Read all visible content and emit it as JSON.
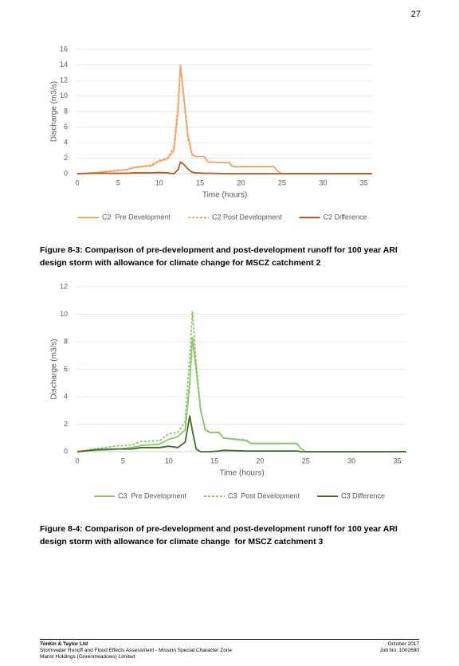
{
  "page_number": "27",
  "chart_data": [
    {
      "type": "line",
      "ylabel": "Discharge (m3/s)",
      "xlabel": "Time (hours)",
      "xlim": [
        0,
        36
      ],
      "ylim": [
        0,
        16
      ],
      "xticks": [
        0,
        5,
        10,
        15,
        20,
        25,
        30,
        35
      ],
      "yticks": [
        0,
        2,
        4,
        6,
        8,
        10,
        12,
        14,
        16
      ],
      "grid": true,
      "x": [
        0,
        2,
        4,
        6,
        7,
        9,
        10,
        11,
        11.8,
        12.3,
        12.6,
        13,
        13.5,
        14,
        14.5,
        15.5,
        16,
        18.5,
        19,
        24,
        24.5,
        25,
        36
      ],
      "series": [
        {
          "name": "C2  Pre Development",
          "color": "#f4a56a",
          "line_style": "solid",
          "values": [
            0,
            0.1,
            0.3,
            0.5,
            0.8,
            1.0,
            1.6,
            1.9,
            3,
            8,
            14,
            10,
            5,
            2.5,
            2.2,
            2.2,
            1.5,
            1.4,
            0.9,
            0.9,
            0.3,
            0,
            0
          ]
        },
        {
          "name": "C2 Post Development",
          "color": "#f4a56a",
          "line_style": "dashed",
          "values": [
            0,
            0.1,
            0.35,
            0.55,
            0.85,
            1.1,
            1.7,
            2.0,
            3.5,
            9,
            13.8,
            9.5,
            4.5,
            2.4,
            2.2,
            2.2,
            1.5,
            1.4,
            0.9,
            0.9,
            0.3,
            0,
            0
          ]
        },
        {
          "name": "C2 Difference",
          "color": "#b5561c",
          "line_style": "solid",
          "values": [
            0,
            0.05,
            0.05,
            0.05,
            0.1,
            0.1,
            0.15,
            0.1,
            0,
            0.5,
            1.5,
            1.2,
            0.6,
            0.2,
            0.1,
            0.05,
            0.05,
            0,
            0,
            0,
            0,
            0,
            0
          ]
        }
      ]
    },
    {
      "type": "line",
      "ylabel": "Discharge (m3/s)",
      "xlabel": "Time (hours)",
      "xlim": [
        0,
        36
      ],
      "ylim": [
        0,
        12
      ],
      "xticks": [
        0,
        5,
        10,
        15,
        20,
        25,
        30,
        35
      ],
      "yticks": [
        0,
        2,
        4,
        6,
        8,
        10,
        12
      ],
      "grid": true,
      "x": [
        0,
        2,
        4,
        6,
        7,
        9,
        10,
        11,
        11.8,
        12.3,
        12.6,
        13,
        13.5,
        14,
        14.5,
        15.5,
        16,
        18.5,
        19,
        24,
        24.5,
        25,
        36
      ],
      "series": [
        {
          "name": "C3  Pre Development",
          "color": "#8cc567",
          "line_style": "solid",
          "values": [
            0,
            0.1,
            0.15,
            0.3,
            0.45,
            0.55,
            0.9,
            1.1,
            1.6,
            5,
            8.3,
            6,
            3,
            1.6,
            1.4,
            1.4,
            1.0,
            0.8,
            0.6,
            0.6,
            0.2,
            0,
            0
          ]
        },
        {
          "name": "C3  Post Development",
          "color": "#8cc567",
          "line_style": "dashed",
          "values": [
            0,
            0.2,
            0.4,
            0.5,
            0.75,
            0.8,
            1.3,
            1.4,
            2.2,
            7,
            10.2,
            6.5,
            3,
            1.6,
            1.4,
            1.4,
            1.0,
            0.85,
            0.6,
            0.6,
            0.2,
            0,
            0
          ]
        },
        {
          "name": "C3 Difference",
          "color": "#3e6b2a",
          "line_style": "solid",
          "values": [
            0,
            0.15,
            0.2,
            0.2,
            0.3,
            0.3,
            0.4,
            0.3,
            0.7,
            2.6,
            1.5,
            0.2,
            0,
            0,
            0,
            0.05,
            0.1,
            0.05,
            0.05,
            0.05,
            0,
            0,
            0
          ]
        }
      ]
    }
  ],
  "captions": [
    "Figure 8-3: Comparison of pre-development and post-development runoff for 100 year ARI design storm with allowance for climate change for MSCZ catchment 2",
    "Figure 8-4: Comparison of pre-development and post-development runoff for 100 year ARI design storm with allowance for climate change  for MSCZ catchment 3"
  ],
  "footer": {
    "company": "Tonkin & Taylor Ltd",
    "report": "Stormwater Runoff and Flood Effects Assessment - Mission Special Character Zone",
    "client": "Marist Holdings (Greenmeadows) Limited",
    "date": "October 2017",
    "job": "Job No: 1002680"
  }
}
